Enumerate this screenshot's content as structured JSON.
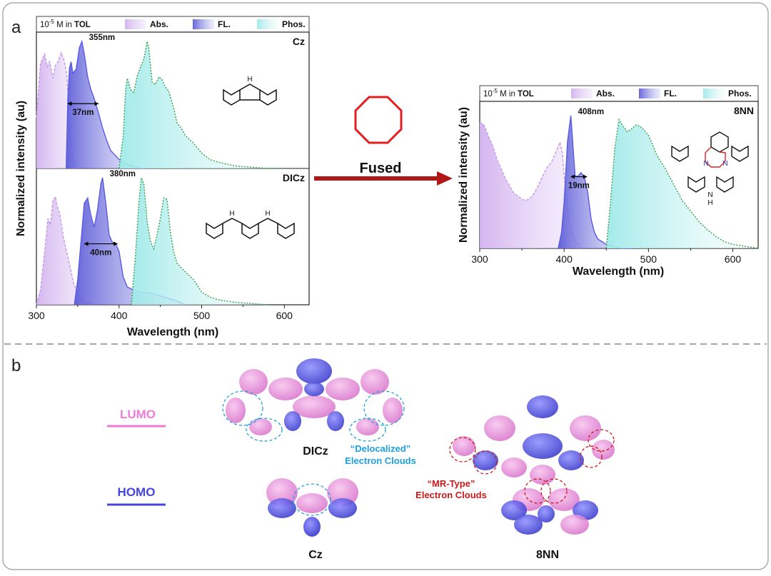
{
  "panels": {
    "a": {
      "label": "a"
    },
    "b": {
      "label": "b"
    }
  },
  "legend": {
    "conc_base": "10",
    "conc_exp": "-5",
    "conc_text": " M in ",
    "solvent": "TOL",
    "abs": "Abs.",
    "fl": "FL.",
    "phos": "Phos."
  },
  "colors": {
    "abs_stroke": "#c79be6",
    "abs_fill": "#d9bff0",
    "fl_stroke": "#5a5ae6",
    "fl_fill": "#7e7ee0",
    "phos_stroke": "#3aa04a",
    "phos_fill": "#c9f1f1",
    "octagon": "#e02020",
    "arrow": "#b01818",
    "lumo": "#f07ad8",
    "homo": "#4545e0",
    "delocalized": "#1ea0e0",
    "mrtype": "#cc1a1a"
  },
  "arrow_label": "Fused",
  "orbitals": {
    "lumo": "LUMO",
    "homo": "HOMO",
    "dicz": "DICz",
    "cz": "Cz",
    "nn8": "8NN",
    "delocalized_1": "“Delocalized”",
    "delocalized_2": "Electron Clouds",
    "mrtype_1": "“MR-Type”",
    "mrtype_2": "Electron Clouds"
  },
  "chart_data": [
    {
      "type": "area",
      "compound": "Cz",
      "xlabel": "Wavelength (nm)",
      "ylabel": "Normalized intensity (au)",
      "xlim": [
        300,
        630
      ],
      "xticks": [
        "300",
        "400",
        "500",
        "600"
      ],
      "series": [
        {
          "name": "Abs.",
          "x": [
            300,
            305,
            310,
            313,
            316,
            320,
            323,
            326,
            330,
            333,
            335,
            337,
            340,
            343,
            346,
            350
          ],
          "y": [
            0.4,
            0.83,
            0.9,
            0.8,
            0.84,
            0.71,
            0.81,
            0.84,
            0.91,
            0.86,
            0.81,
            0.72,
            0.35,
            0.12,
            0.04,
            0.0
          ]
        },
        {
          "name": "FL.",
          "x": [
            336,
            338,
            340,
            342,
            344,
            348,
            352,
            355,
            358,
            362,
            366,
            370,
            375,
            380,
            385,
            390,
            400,
            410,
            420,
            430
          ],
          "y": [
            0.0,
            0.55,
            0.79,
            0.84,
            0.75,
            0.78,
            0.95,
            1.0,
            0.9,
            0.72,
            0.62,
            0.55,
            0.44,
            0.32,
            0.22,
            0.14,
            0.07,
            0.03,
            0.01,
            0.0
          ]
        },
        {
          "name": "Phos.",
          "x": [
            400,
            405,
            408,
            410,
            414,
            418,
            422,
            426,
            430,
            434,
            436,
            440,
            444,
            448,
            452,
            456,
            460,
            466,
            470,
            476,
            480,
            490,
            500,
            510,
            520,
            540,
            560,
            580,
            600
          ],
          "y": [
            0.0,
            0.25,
            0.62,
            0.71,
            0.62,
            0.6,
            0.73,
            0.8,
            0.86,
            1.0,
            0.95,
            0.68,
            0.66,
            0.72,
            0.7,
            0.64,
            0.61,
            0.48,
            0.36,
            0.31,
            0.26,
            0.2,
            0.12,
            0.07,
            0.05,
            0.02,
            0.01,
            0.0,
            0.0
          ]
        }
      ],
      "annotations": [
        {
          "text": "355nm",
          "x": 355,
          "y": 1.0
        },
        {
          "text": "37nm",
          "x1": 338,
          "x2": 375,
          "y": 0.51
        }
      ]
    },
    {
      "type": "area",
      "compound": "DICz",
      "xlabel": "Wavelength (nm)",
      "ylabel": "Normalized intensity (au)",
      "xlim": [
        300,
        630
      ],
      "xticks": [
        "300",
        "400",
        "500",
        "600"
      ],
      "series": [
        {
          "name": "Abs.",
          "x": [
            300,
            305,
            310,
            314,
            317,
            320,
            323,
            325,
            328,
            333,
            340,
            345,
            350,
            355,
            360,
            370
          ],
          "y": [
            0.0,
            0.12,
            0.42,
            0.68,
            0.63,
            0.82,
            0.85,
            0.78,
            0.72,
            0.52,
            0.32,
            0.17,
            0.08,
            0.04,
            0.02,
            0.0
          ]
        },
        {
          "name": "FL.",
          "x": [
            346,
            350,
            354,
            358,
            362,
            366,
            370,
            374,
            378,
            380,
            384,
            388,
            392,
            396,
            400,
            405,
            410,
            420,
            430,
            440,
            450,
            460,
            470,
            480
          ],
          "y": [
            0.0,
            0.2,
            0.5,
            0.8,
            0.84,
            0.7,
            0.61,
            0.75,
            0.95,
            1.0,
            0.8,
            0.55,
            0.49,
            0.48,
            0.42,
            0.22,
            0.14,
            0.11,
            0.1,
            0.09,
            0.07,
            0.05,
            0.03,
            0.0
          ]
        },
        {
          "name": "Phos.",
          "x": [
            415,
            420,
            424,
            427,
            430,
            434,
            438,
            442,
            446,
            450,
            454,
            458,
            462,
            466,
            470,
            474,
            480,
            490,
            500,
            510,
            520,
            540,
            560,
            580
          ],
          "y": [
            0.0,
            0.4,
            0.8,
            1.0,
            0.95,
            0.66,
            0.5,
            0.44,
            0.55,
            0.68,
            0.84,
            0.83,
            0.58,
            0.42,
            0.33,
            0.3,
            0.26,
            0.2,
            0.1,
            0.06,
            0.04,
            0.02,
            0.01,
            0.0
          ]
        }
      ],
      "annotations": [
        {
          "text": "380nm",
          "x": 380,
          "y": 1.0
        },
        {
          "text": "40nm",
          "x1": 358,
          "x2": 398,
          "y": 0.48
        }
      ]
    },
    {
      "type": "area",
      "compound": "8NN",
      "xlabel": "Wavelength (nm)",
      "ylabel": "Normalized intensity (au)",
      "xlim": [
        300,
        630
      ],
      "xticks": [
        "300",
        "400",
        "500",
        "600"
      ],
      "series": [
        {
          "name": "Abs.",
          "x": [
            300,
            305,
            310,
            315,
            320,
            330,
            340,
            350,
            355,
            360,
            365,
            370,
            375,
            380,
            385,
            390,
            395,
            398,
            400,
            405,
            410,
            415,
            420
          ],
          "y": [
            0.95,
            0.93,
            0.85,
            0.78,
            0.68,
            0.53,
            0.42,
            0.37,
            0.36,
            0.38,
            0.42,
            0.48,
            0.55,
            0.61,
            0.65,
            0.72,
            0.8,
            0.72,
            0.55,
            0.25,
            0.1,
            0.04,
            0.0
          ]
        },
        {
          "name": "FL.",
          "x": [
            393,
            397,
            400,
            404,
            408,
            410,
            413,
            416,
            420,
            424,
            428,
            432,
            436,
            440,
            450,
            460,
            470,
            480
          ],
          "y": [
            0.0,
            0.12,
            0.35,
            0.8,
            1.0,
            0.82,
            0.55,
            0.54,
            0.57,
            0.54,
            0.42,
            0.22,
            0.12,
            0.07,
            0.03,
            0.01,
            0.0,
            0.0
          ]
        },
        {
          "name": "Phos.",
          "x": [
            450,
            455,
            460,
            465,
            470,
            475,
            480,
            485,
            490,
            495,
            500,
            505,
            510,
            520,
            530,
            540,
            550,
            560,
            570,
            580,
            590,
            600,
            610,
            620,
            630
          ],
          "y": [
            0.0,
            0.35,
            0.75,
            0.97,
            0.92,
            0.88,
            0.9,
            0.93,
            0.92,
            0.89,
            0.85,
            0.78,
            0.7,
            0.6,
            0.48,
            0.36,
            0.28,
            0.2,
            0.14,
            0.09,
            0.05,
            0.03,
            0.02,
            0.01,
            0.0
          ]
        }
      ],
      "annotations": [
        {
          "text": "408nm",
          "x": 408,
          "y": 1.0
        },
        {
          "text": "19nm",
          "x1": 408,
          "x2": 427,
          "y": 0.54
        }
      ]
    }
  ]
}
